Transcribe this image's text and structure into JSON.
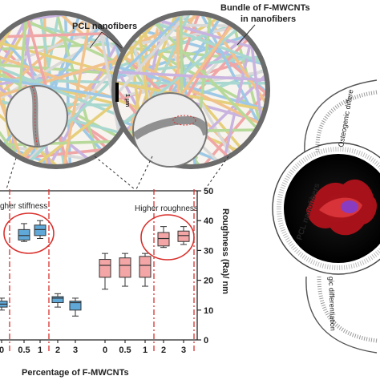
{
  "labels": {
    "pcl_top": "PCL nanofibers",
    "bundle_line1": "Bundle of F-MWCNTs",
    "bundle_line2": "in nanofibers",
    "scale": "1 μm",
    "higher_stiffness": "gher stiffness",
    "higher_roughness": "Higher roughness",
    "y_axis": "Roughness (Ra)/ nm",
    "x_axis": "Percentage of F-MWCNTs",
    "right_pcl": "PCL nanofibers",
    "osteogenic": "Osteogenic differe",
    "differentiation": "gic differentiation"
  },
  "chart_data": {
    "type": "box",
    "ylabel": "Roughness (Ra)/ nm",
    "xlabel": "Percentage of F-MWCNTs",
    "ylim": [
      0,
      50
    ],
    "yticks": [
      0,
      10,
      20,
      30,
      40,
      50
    ],
    "categories": [
      "0",
      "0.5",
      "1",
      "2",
      "3",
      "0",
      "0.5",
      "1",
      "2",
      "3"
    ],
    "series": [
      {
        "color": "#5fa8d8",
        "boxes": [
          {
            "category": 0,
            "min": 10,
            "q1": 11,
            "median": 12,
            "q3": 13,
            "max": 14
          },
          {
            "category": 1,
            "min": 33,
            "q1": 33.5,
            "median": 35,
            "q3": 37,
            "max": 39
          },
          {
            "category": 2,
            "min": 34,
            "q1": 35,
            "median": 37,
            "q3": 38.5,
            "max": 40
          },
          {
            "category": 3,
            "min": 11,
            "q1": 12.5,
            "median": 14,
            "q3": 14.5,
            "max": 15.5
          },
          {
            "category": 4,
            "min": 8,
            "q1": 10,
            "median": 12.5,
            "q3": 13,
            "max": 14
          }
        ]
      },
      {
        "color": "#f4a6a6",
        "boxes": [
          {
            "category": 5,
            "min": 17,
            "q1": 21,
            "median": 25,
            "q3": 27,
            "max": 29
          },
          {
            "category": 6,
            "min": 18,
            "q1": 21,
            "median": 25,
            "q3": 27.5,
            "max": 29
          },
          {
            "category": 7,
            "min": 18,
            "q1": 21,
            "median": 25,
            "q3": 28,
            "max": 29
          },
          {
            "category": 8,
            "min": 31,
            "q1": 31.5,
            "median": 34,
            "q3": 36,
            "max": 38
          },
          {
            "category": 9,
            "min": 32,
            "q1": 33,
            "median": 35,
            "q3": 36.5,
            "max": 38
          }
        ]
      }
    ]
  },
  "colors": {
    "blue_box": "#5fa8d8",
    "pink_box": "#f4a6a6",
    "dashed_red": "#d9302c",
    "cell_red": "#d4191f"
  }
}
